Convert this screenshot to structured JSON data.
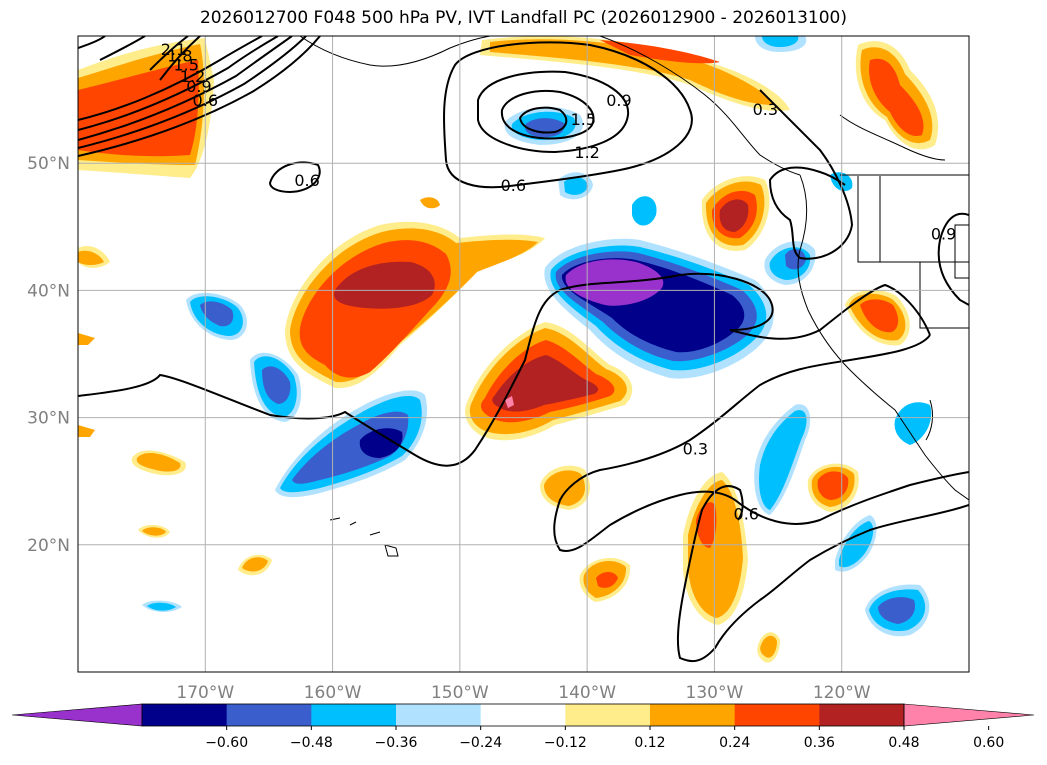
{
  "title": "2026012700 F048 500 hPa PV, IVT Landfall PC (2026012900 - 2026013100)",
  "map": {
    "lon_range": [
      -180,
      -110
    ],
    "lat_range": [
      10,
      60
    ],
    "lat_labels": [
      {
        "lat": 50,
        "text": "50°N"
      },
      {
        "lat": 40,
        "text": "40°N"
      },
      {
        "lat": 30,
        "text": "30°N"
      },
      {
        "lat": 20,
        "text": "20°N"
      }
    ],
    "lon_labels": [
      {
        "lon": -170,
        "text": "170°W"
      },
      {
        "lon": -160,
        "text": "160°W"
      },
      {
        "lon": -150,
        "text": "150°W"
      },
      {
        "lon": -140,
        "text": "140°W"
      },
      {
        "lon": -130,
        "text": "130°W"
      },
      {
        "lon": -120,
        "text": "120°W"
      }
    ],
    "contour_labels": [
      {
        "text": "0.6",
        "lon": -162.0,
        "lat": 48.2
      },
      {
        "text": "0.6",
        "lon": -145.8,
        "lat": 47.8
      },
      {
        "text": "0.9",
        "lon": -137.5,
        "lat": 54.5
      },
      {
        "text": "1.2",
        "lon": -140.0,
        "lat": 50.4
      },
      {
        "text": "1.5",
        "lon": -140.3,
        "lat": 53.0
      },
      {
        "text": "0.3",
        "lon": -131.5,
        "lat": 27.1
      },
      {
        "text": "0.6",
        "lon": -127.5,
        "lat": 22.0
      },
      {
        "text": "0.3",
        "lon": -126.0,
        "lat": 53.8
      },
      {
        "text": "0.9",
        "lon": -112.0,
        "lat": 44.0
      },
      {
        "text": "0.6",
        "lon": -170.0,
        "lat": 54.5
      },
      {
        "text": "0.9",
        "lon": -170.5,
        "lat": 55.6
      },
      {
        "text": "1.2",
        "lon": -171.0,
        "lat": 56.4
      },
      {
        "text": "1.5",
        "lon": -171.5,
        "lat": 57.3
      },
      {
        "text": "1.8",
        "lon": -172.0,
        "lat": 58.0
      },
      {
        "text": "2.1",
        "lon": -172.5,
        "lat": 58.5
      }
    ]
  },
  "colorbar": {
    "ticks": [
      "−0.60",
      "−0.48",
      "−0.36",
      "−0.24",
      "−0.12",
      "0.12",
      "0.24",
      "0.36",
      "0.48",
      "0.60"
    ],
    "colors": [
      "#9932CC",
      "#00008B",
      "#3A5FCD",
      "#00BFFF",
      "#B0E2FF",
      "#FFFFFF",
      "#FFEC8B",
      "#FFA500",
      "#FF4500",
      "#B22222",
      "#FF82AB"
    ]
  }
}
